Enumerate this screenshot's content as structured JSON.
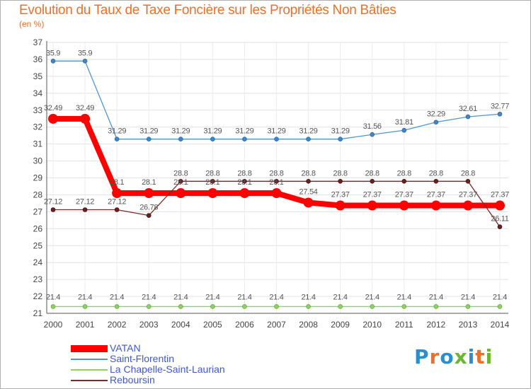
{
  "title": "Evolution du Taux de Taxe Foncière sur les Propriétés Non Bâties",
  "subtitle": "(en %)",
  "logo": {
    "text": "Proxiti",
    "colors": [
      "#2a8fd0",
      "#e8722c",
      "#2a8fd0",
      "#6ab82d",
      "#2a8fd0",
      "#e8722c",
      "#6ab82d"
    ]
  },
  "chart_data": {
    "type": "line",
    "title": "Evolution du Taux de Taxe Foncière sur les Propriétés Non Bâties",
    "ylabel": "(en %)",
    "xlabel": "",
    "x": [
      "2000",
      "2001",
      "2002",
      "2003",
      "2004",
      "2005",
      "2006",
      "2007",
      "2008",
      "2009",
      "2010",
      "2011",
      "2012",
      "2013",
      "2014"
    ],
    "ylim": [
      21,
      37
    ],
    "yticks": [
      21,
      22,
      23,
      24,
      25,
      26,
      27,
      28,
      29,
      30,
      31,
      32,
      33,
      34,
      35,
      36,
      37
    ],
    "grid": true,
    "legend_position": "bottom-left",
    "series": [
      {
        "name": "VATAN",
        "color": "#ff0000",
        "values": [
          32.49,
          32.49,
          28.1,
          28.1,
          28.1,
          28.1,
          28.1,
          28.1,
          27.54,
          27.37,
          27.37,
          27.37,
          27.37,
          27.37,
          27.37
        ],
        "labels": [
          "32.49",
          "32.49",
          "28.1",
          "28.1",
          "28.1",
          "28.1",
          "28.1",
          "28.1",
          "27.54",
          "27.37",
          "27.37",
          "27.37",
          "27.37",
          "27.37",
          "27.37"
        ]
      },
      {
        "name": "Saint-Florentin",
        "color": "#4f95d1",
        "values": [
          35.9,
          35.9,
          31.29,
          31.29,
          31.29,
          31.29,
          31.29,
          31.29,
          31.29,
          31.29,
          31.56,
          31.81,
          32.29,
          32.61,
          32.77
        ],
        "labels": [
          "35.9",
          "35.9",
          "31.29",
          "31.29",
          "31.29",
          "31.29",
          "31.29",
          "31.29",
          "31.29",
          "31.29",
          "31.56",
          "31.81",
          "32.29",
          "32.61",
          "32.77"
        ]
      },
      {
        "name": "La Chapelle-Saint-Laurian",
        "color": "#8fd15a",
        "values": [
          21.4,
          21.4,
          21.4,
          21.4,
          21.4,
          21.4,
          21.4,
          21.4,
          21.4,
          21.4,
          21.4,
          21.4,
          21.4,
          21.4,
          21.4
        ],
        "labels": [
          "21.4",
          "21.4",
          "21.4",
          "21.4",
          "21.4",
          "21.4",
          "21.4",
          "21.4",
          "21.4",
          "21.4",
          "21.4",
          "21.4",
          "21.4",
          "21.4",
          "21.4"
        ]
      },
      {
        "name": "Reboursin",
        "color": "#7a2a2a",
        "values": [
          27.12,
          27.12,
          27.12,
          26.78,
          28.8,
          28.8,
          28.8,
          28.8,
          28.8,
          28.8,
          28.8,
          28.8,
          28.8,
          28.8,
          26.11
        ],
        "labels": [
          "27.12",
          "27.12",
          "27.12",
          "26.78",
          "28.8",
          "28.8",
          "28.8",
          "28.8",
          "28.8",
          "28.8",
          "28.8",
          "28.8",
          "28.8",
          "28.8",
          "26.11"
        ]
      }
    ]
  }
}
